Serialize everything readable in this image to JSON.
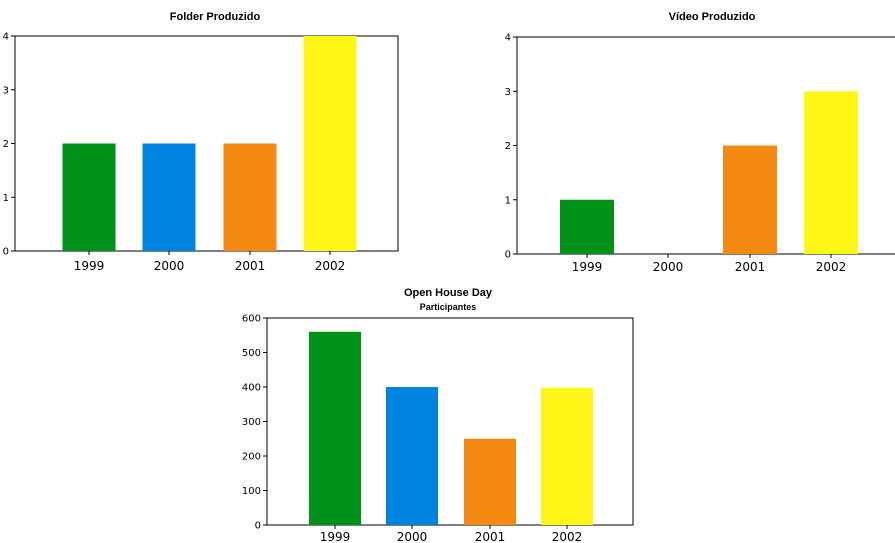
{
  "colors": {
    "1999": "#009118",
    "2000": "#0084E0",
    "2001": "#F58A12",
    "2002": "#FFF516"
  },
  "chart_data": [
    {
      "type": "bar",
      "title": "Folder Produzido",
      "subtitle": "",
      "categories": [
        "1999",
        "2000",
        "2001",
        "2002"
      ],
      "values": [
        2,
        2,
        2,
        4
      ],
      "ylim": [
        0,
        4
      ],
      "yticks": [
        "0",
        "1",
        "2",
        "3",
        "4"
      ],
      "grid": false,
      "legend": "none"
    },
    {
      "type": "bar",
      "title": "Vídeo Produzido",
      "subtitle": "",
      "categories": [
        "1999",
        "2000",
        "2001",
        "2002"
      ],
      "values": [
        1,
        0,
        2,
        3
      ],
      "ylim": [
        0,
        4
      ],
      "yticks": [
        "0",
        "1",
        "2",
        "3",
        "4"
      ],
      "grid": false,
      "legend": "none"
    },
    {
      "type": "bar",
      "title": "Open House Day",
      "subtitle": "Participantes",
      "categories": [
        "1999",
        "2000",
        "2001",
        "2002"
      ],
      "values": [
        560,
        400,
        250,
        398
      ],
      "ylim": [
        0,
        600
      ],
      "yticks": [
        "0",
        "100",
        "200",
        "300",
        "400",
        "500",
        "600"
      ],
      "grid": false,
      "legend": "none"
    }
  ]
}
